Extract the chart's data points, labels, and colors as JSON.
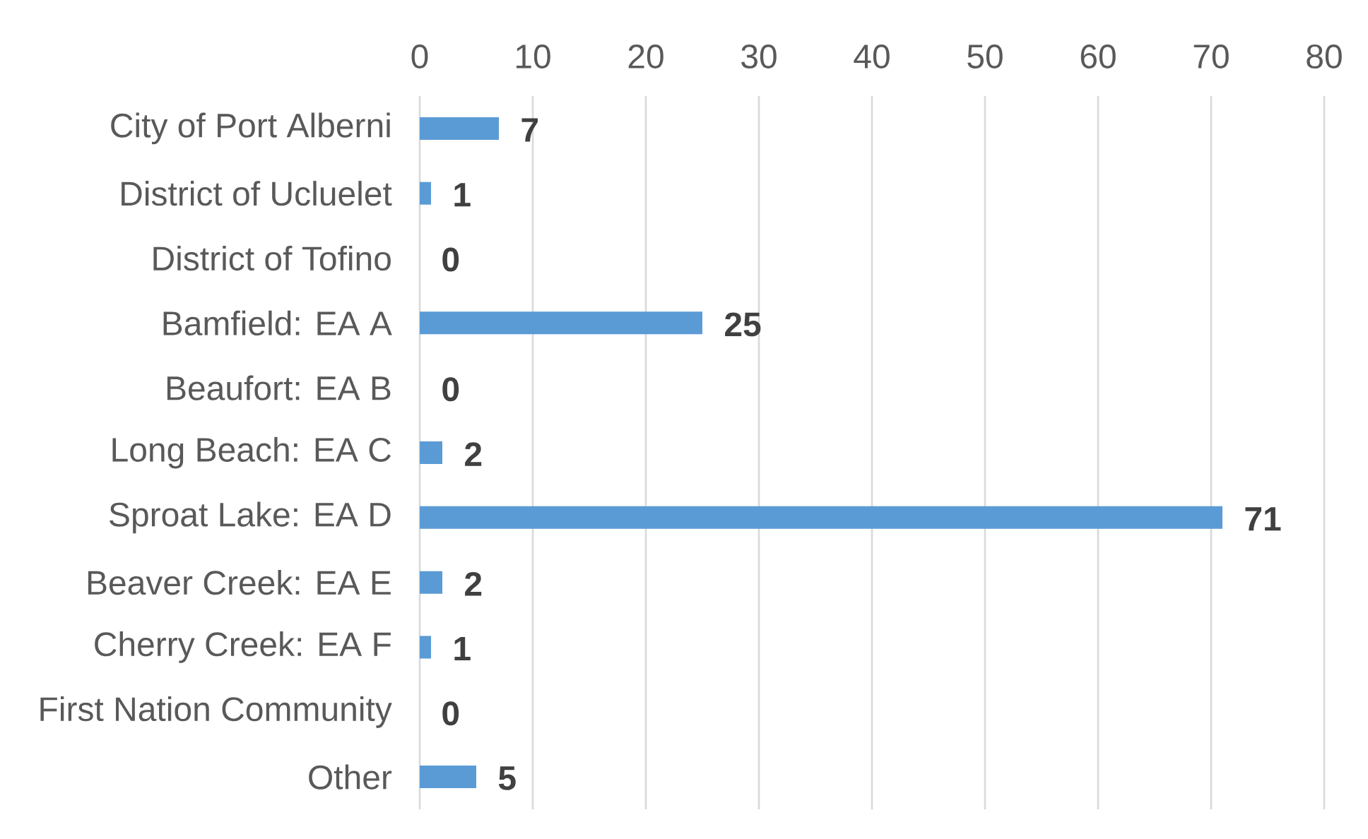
{
  "chart_data": {
    "type": "bar",
    "orientation": "horizontal",
    "categories": [
      "City of Port Alberni",
      "District of Ucluelet",
      "District of Tofino",
      "Bamfield: EA A",
      "Beaufort: EA B",
      "Long Beach: EA C",
      "Sproat Lake: EA D",
      "Beaver Creek: EA E",
      "Cherry Creek: EA F",
      "First Nation Community",
      "Other"
    ],
    "values": [
      7,
      1,
      0,
      25,
      0,
      2,
      71,
      2,
      1,
      0,
      5
    ],
    "color": "#5b9bd5",
    "xlim": [
      0,
      80
    ],
    "xticks": [
      0,
      10,
      20,
      30,
      40,
      50,
      60,
      70,
      80
    ],
    "grid": "x",
    "data_labels": true
  }
}
